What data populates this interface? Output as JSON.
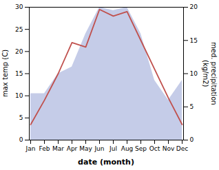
{
  "chart_data": {
    "type": "line",
    "categories": [
      "Jan",
      "Feb",
      "Mar",
      "Apr",
      "May",
      "Jun",
      "Jul",
      "Aug",
      "Sep",
      "Oct",
      "Nov",
      "Dec"
    ],
    "xlabel": "date (month)",
    "ylabel": "max temp (C)",
    "y2label": "med. precipitation\n(kg/m2)",
    "series": [
      {
        "type": "area",
        "axis": "y2",
        "color": "#c5cce8",
        "values": [
          7.0,
          7.0,
          10.0,
          11.0,
          16.0,
          20.0,
          19.5,
          20.0,
          16.0,
          9.0,
          6.0,
          9.0
        ]
      },
      {
        "type": "line",
        "color": "#c0504d",
        "values": [
          3.5,
          9.0,
          15.0,
          22.0,
          21.0,
          29.5,
          28.0,
          29.0,
          22.5,
          16.0,
          9.5,
          3.5
        ]
      }
    ],
    "ylim": [
      0,
      30
    ],
    "yticks": [
      0,
      5,
      10,
      15,
      20,
      25,
      30
    ],
    "y2lim": [
      0,
      20
    ],
    "y2ticks": [
      0,
      5,
      10,
      15,
      20
    ],
    "grid": false
  }
}
